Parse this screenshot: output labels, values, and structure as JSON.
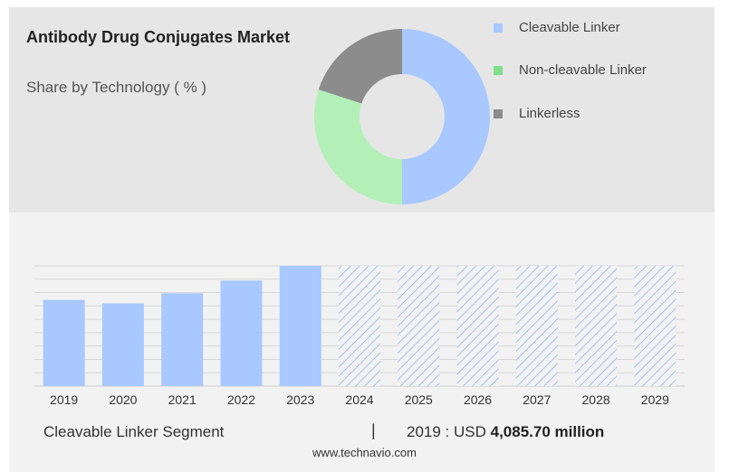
{
  "header": {
    "title": "Antibody Drug Conjugates Market",
    "subtitle": "Share by Technology ( % )"
  },
  "donut": {
    "type": "pie",
    "legend_placement": "right",
    "legend": [
      {
        "label": "Cleavable Linker",
        "color": "#a8c8ff",
        "value": 50
      },
      {
        "label": "Non-cleavable Linker",
        "color": "#b3f0b8",
        "value": 30
      },
      {
        "label": "Linkerless",
        "color": "#8c8c8c",
        "value": 20
      }
    ],
    "legend_swatch_colors": [
      "#a8c8ff",
      "#7ee08a",
      "#8c8c8c"
    ]
  },
  "chart_data": {
    "type": "bar",
    "categories": [
      "2019",
      "2020",
      "2021",
      "2022",
      "2023",
      "2024",
      "2025",
      "2026",
      "2027",
      "2028",
      "2029"
    ],
    "values": [
      4085.7,
      3920,
      4400,
      5000,
      5700,
      null,
      null,
      null,
      null,
      null,
      null
    ],
    "forecast_categories": [
      "2024",
      "2025",
      "2026",
      "2027",
      "2028",
      "2029"
    ],
    "ylim": [
      0,
      5700
    ],
    "grid": true,
    "bar_color": "#a8c8ff",
    "forecast_hatch_color": "#8fb4f0"
  },
  "footer": {
    "segment_label": "Cleavable Linker Segment",
    "separator": "|",
    "value_prefix": "2019 : USD ",
    "value_bold": "4,085.70 million",
    "source": "www.technavio.com"
  }
}
